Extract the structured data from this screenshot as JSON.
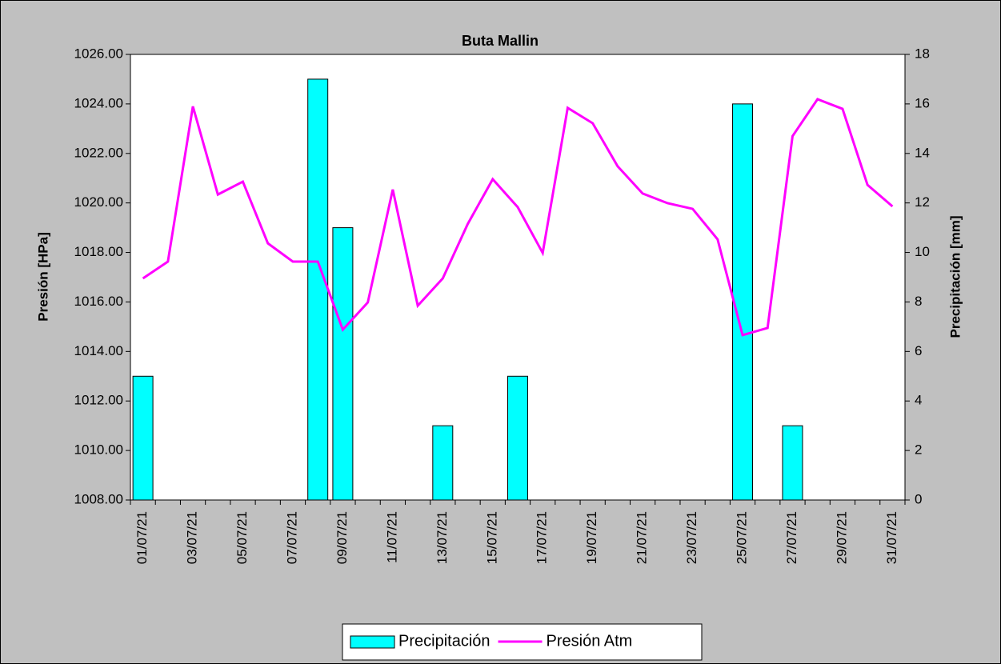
{
  "chart_data": {
    "type": "bar",
    "title": "Buta Mallin",
    "y_label": "Presión [HPa]",
    "y2_label": "Precipitación [mm]",
    "categories": [
      "01/07/21",
      null,
      "03/07/21",
      null,
      "05/07/21",
      null,
      "07/07/21",
      null,
      "09/07/21",
      null,
      "11/07/21",
      null,
      "13/07/21",
      null,
      "15/07/21",
      null,
      "17/07/21",
      null,
      "19/07/21",
      null,
      "21/07/21",
      null,
      "23/07/21",
      null,
      "25/07/21",
      null,
      "27/07/21",
      null,
      "29/07/21",
      null,
      "31/07/21"
    ],
    "series": [
      {
        "name": "Precipitación",
        "type": "bar",
        "axis": "y2",
        "color": "#00ffff",
        "values": [
          5,
          0,
          0,
          0,
          0,
          0,
          0,
          17,
          11,
          0,
          0,
          0,
          3,
          0,
          0,
          5,
          0,
          0,
          0,
          0,
          0,
          0,
          0,
          0,
          16,
          0,
          3,
          0,
          0,
          0,
          0
        ]
      },
      {
        "name": "Presión Atm",
        "type": "line",
        "axis": "y",
        "color": "#ff00ff",
        "values": [
          1016.95,
          1017.63,
          1023.9,
          1020.34,
          1020.86,
          1018.37,
          1017.63,
          1017.63,
          1014.88,
          1015.98,
          1020.54,
          1015.85,
          1016.95,
          1019.15,
          1020.96,
          1019.83,
          1017.98,
          1023.84,
          1023.22,
          1021.48,
          1020.38,
          1019.99,
          1019.76,
          1018.53,
          1014.66,
          1014.95,
          1022.7,
          1024.19,
          1023.8,
          1020.73,
          1019.86
        ]
      }
    ],
    "ylim": [
      1008,
      1026
    ],
    "yticks": [
      {
        "value": 1008,
        "label": "1008.00"
      },
      {
        "value": 1010,
        "label": "1010.00"
      },
      {
        "value": 1012,
        "label": "1012.00"
      },
      {
        "value": 1014,
        "label": "1014.00"
      },
      {
        "value": 1016,
        "label": "1016.00"
      },
      {
        "value": 1018,
        "label": "1018.00"
      },
      {
        "value": 1020,
        "label": "1020.00"
      },
      {
        "value": 1022,
        "label": "1022.00"
      },
      {
        "value": 1024,
        "label": "1024.00"
      },
      {
        "value": 1026,
        "label": "1026.00"
      }
    ],
    "y2lim": [
      0,
      18
    ],
    "y2ticks": [
      0,
      2,
      4,
      6,
      8,
      10,
      12,
      14,
      16,
      18
    ],
    "grid": false,
    "legend": "bottom"
  }
}
